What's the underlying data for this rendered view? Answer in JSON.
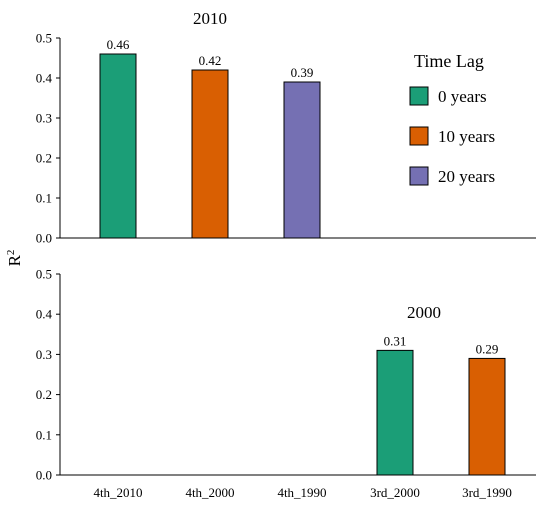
{
  "chart_data": {
    "type": "bar",
    "ylabel": "R",
    "ylabel_superscript": "2",
    "categories": [
      "4th_2010",
      "4th_2000",
      "4th_1990",
      "3rd_2000",
      "3rd_1990"
    ],
    "legend": {
      "title": "Time Lag",
      "placement": "top-right",
      "items": [
        {
          "label": "0 years",
          "color": "#1b9e77"
        },
        {
          "label": "10 years",
          "color": "#d95f02"
        },
        {
          "label": "20 years",
          "color": "#7570b3"
        }
      ]
    },
    "panels": [
      {
        "title": "2010",
        "ylim": [
          0,
          0.5
        ],
        "yticks": [
          "0.0",
          "0.1",
          "0.2",
          "0.3",
          "0.4",
          "0.5"
        ],
        "bars": [
          {
            "category": "4th_2010",
            "value": 0.46,
            "label": "0.46",
            "color": "#1b9e77"
          },
          {
            "category": "4th_2000",
            "value": 0.42,
            "label": "0.42",
            "color": "#d95f02"
          },
          {
            "category": "4th_1990",
            "value": 0.39,
            "label": "0.39",
            "color": "#7570b3"
          }
        ]
      },
      {
        "title": "2000",
        "ylim": [
          0,
          0.5
        ],
        "yticks": [
          "0.0",
          "0.1",
          "0.2",
          "0.3",
          "0.4",
          "0.5"
        ],
        "bars": [
          {
            "category": "3rd_2000",
            "value": 0.31,
            "label": "0.31",
            "color": "#1b9e77"
          },
          {
            "category": "3rd_1990",
            "value": 0.29,
            "label": "0.29",
            "color": "#d95f02"
          }
        ]
      }
    ]
  }
}
